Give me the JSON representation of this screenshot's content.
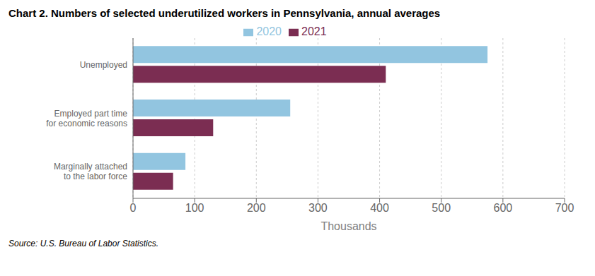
{
  "chart_data": {
    "type": "bar",
    "orientation": "horizontal",
    "title": "Chart 2. Numbers of selected underutilized workers in Pennsylvania, annual averages",
    "categories": [
      "Unemployed",
      "Employed part time\nfor economic reasons",
      "Marginally attached\nto the labor force"
    ],
    "series": [
      {
        "name": "2020",
        "color": "#92C5E0",
        "values": [
          575,
          255,
          85
        ]
      },
      {
        "name": "2021",
        "color": "#7B2D52",
        "values": [
          410,
          130,
          65
        ]
      }
    ],
    "xlabel": "Thousands",
    "xlim": [
      0,
      700
    ],
    "xticks": [
      0,
      100,
      200,
      300,
      400,
      500,
      600,
      700
    ],
    "grid": true,
    "legend": "top",
    "source": "Source: U.S. Bureau of Labor Statistics."
  }
}
